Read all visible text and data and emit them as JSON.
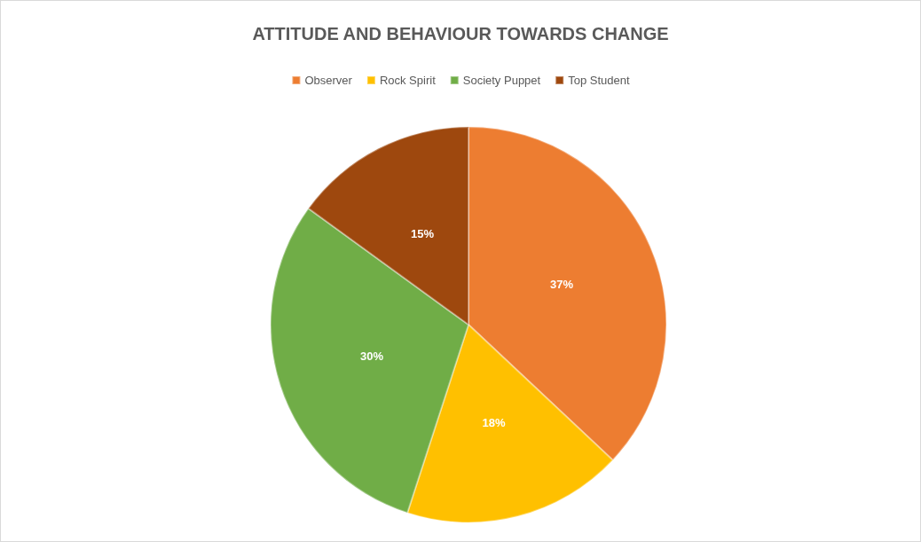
{
  "chart_data": {
    "type": "pie",
    "title": "ATTITUDE AND BEHAVIOUR TOWARDS CHANGE",
    "categories": [
      "Observer",
      "Rock Spirit",
      "Society Puppet",
      "Top Student"
    ],
    "values": [
      37,
      18,
      30,
      15
    ],
    "colors": [
      "#ed7d31",
      "#ffc000",
      "#70ad47",
      "#9e480e"
    ],
    "value_labels": [
      "37%",
      "18%",
      "30%",
      "15%"
    ],
    "legend": "top"
  }
}
